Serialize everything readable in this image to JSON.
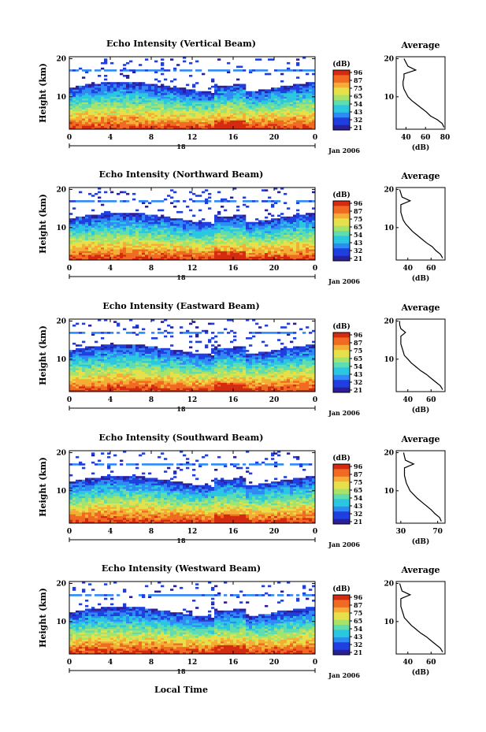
{
  "figure": {
    "local_time_label": "Local Time",
    "date_label": "Jan 2006",
    "day_label": "18",
    "y_axis_label": "Height (km)",
    "colorbar_unit": "(dB)",
    "colorbar_ticks": [
      "96",
      "87",
      "75",
      "65",
      "54",
      "43",
      "32",
      "21"
    ],
    "colors": {
      "colormap": [
        "#2a1f9a",
        "#1f3fe0",
        "#2f8af5",
        "#2bc7e0",
        "#5fdcb0",
        "#a6e36d",
        "#e6e04a",
        "#f5ae35",
        "#f06a22",
        "#d42a10"
      ],
      "line": "#000000"
    }
  },
  "chart_data": [
    {
      "type": "heatmap",
      "title": "Echo Intensity (Vertical Beam)",
      "xlabel": "",
      "ylabel": "Height (km)",
      "xticks": [
        "0",
        "4",
        "8",
        "12",
        "16",
        "20",
        "0"
      ],
      "yticks": [
        "20",
        "10"
      ],
      "xlim": [
        0,
        24
      ],
      "ylim": [
        1.5,
        20.5
      ],
      "colorbar": {
        "label": "(dB)",
        "range": [
          21,
          96
        ],
        "ticks": [
          96,
          87,
          75,
          65,
          54,
          43,
          32,
          21
        ]
      },
      "profile": {
        "title": "Average",
        "xlabel": "(dB)",
        "xticks": [
          "40",
          "60",
          "80"
        ],
        "yticks": [
          "20",
          "10"
        ],
        "xlim": [
          30,
          80
        ],
        "height": [
          2,
          3,
          4,
          5,
          6,
          7,
          8,
          9,
          10,
          11,
          12,
          13,
          14,
          15,
          16,
          17,
          18,
          19,
          20
        ],
        "values": [
          79,
          77,
          72,
          65,
          61,
          56,
          51,
          46,
          42,
          40,
          38,
          37,
          37,
          38,
          38,
          50,
          42,
          40,
          38
        ]
      }
    },
    {
      "type": "heatmap",
      "title": "Echo Intensity (Northward Beam)",
      "xlabel": "",
      "ylabel": "Height (km)",
      "xticks": [
        "0",
        "4",
        "8",
        "12",
        "16",
        "20",
        "0"
      ],
      "yticks": [
        "20",
        "10"
      ],
      "xlim": [
        0,
        24
      ],
      "ylim": [
        1.5,
        20.5
      ],
      "colorbar": {
        "label": "(dB)",
        "range": [
          21,
          96
        ],
        "ticks": [
          96,
          87,
          75,
          65,
          54,
          43,
          32,
          21
        ]
      },
      "profile": {
        "title": "Average",
        "xlabel": "(dB)",
        "xticks": [
          "40",
          "60"
        ],
        "yticks": [
          "20",
          "10"
        ],
        "xlim": [
          30,
          72
        ],
        "height": [
          2,
          3,
          4,
          5,
          6,
          7,
          8,
          9,
          10,
          11,
          12,
          13,
          14,
          15,
          16,
          17,
          18,
          19,
          20
        ],
        "values": [
          70,
          68,
          64,
          61,
          56,
          52,
          48,
          44,
          41,
          38,
          36,
          35,
          34,
          34,
          34,
          42,
          35,
          34,
          33
        ]
      }
    },
    {
      "type": "heatmap",
      "title": "Echo Intensity (Eastward Beam)",
      "xlabel": "",
      "ylabel": "Height (km)",
      "xticks": [
        "0",
        "4",
        "8",
        "12",
        "16",
        "20",
        "0"
      ],
      "yticks": [
        "20",
        "10"
      ],
      "xlim": [
        0,
        24
      ],
      "ylim": [
        1.5,
        20.5
      ],
      "colorbar": {
        "label": "(dB)",
        "range": [
          21,
          96
        ],
        "ticks": [
          96,
          87,
          75,
          65,
          54,
          43,
          32,
          21
        ]
      },
      "profile": {
        "title": "Average",
        "xlabel": "(dB)",
        "xticks": [
          "40",
          "60"
        ],
        "yticks": [
          "20",
          "10"
        ],
        "xlim": [
          30,
          72
        ],
        "height": [
          2,
          3,
          4,
          5,
          6,
          7,
          8,
          9,
          10,
          11,
          12,
          13,
          14,
          15,
          16,
          17,
          18,
          19,
          20
        ],
        "values": [
          70,
          68,
          64,
          60,
          56,
          51,
          47,
          43,
          40,
          37,
          36,
          35,
          34,
          34,
          34,
          38,
          34,
          33,
          33
        ]
      }
    },
    {
      "type": "heatmap",
      "title": "Echo Intensity (Southward Beam)",
      "xlabel": "",
      "ylabel": "Height (km)",
      "xticks": [
        "0",
        "4",
        "8",
        "12",
        "16",
        "20",
        "0"
      ],
      "yticks": [
        "20",
        "10"
      ],
      "xlim": [
        0,
        24
      ],
      "ylim": [
        1.5,
        20.5
      ],
      "colorbar": {
        "label": "(dB)",
        "range": [
          21,
          96
        ],
        "ticks": [
          96,
          87,
          75,
          65,
          54,
          43,
          32,
          21
        ]
      },
      "profile": {
        "title": "Average",
        "xlabel": "(dB)",
        "xticks": [
          "30",
          "70"
        ],
        "yticks": [
          "20",
          "10"
        ],
        "xlim": [
          25,
          78
        ],
        "height": [
          2,
          3,
          4,
          5,
          6,
          7,
          8,
          9,
          10,
          11,
          12,
          13,
          14,
          15,
          16,
          17,
          18,
          19,
          20
        ],
        "values": [
          74,
          72,
          67,
          63,
          58,
          53,
          48,
          44,
          40,
          38,
          36,
          35,
          34,
          34,
          34,
          44,
          35,
          34,
          33
        ]
      }
    },
    {
      "type": "heatmap",
      "title": "Echo Intensity (Westward Beam)",
      "xlabel": "Local Time",
      "ylabel": "Height (km)",
      "xticks": [
        "0",
        "4",
        "8",
        "12",
        "16",
        "20",
        "0"
      ],
      "yticks": [
        "20",
        "10"
      ],
      "xlim": [
        0,
        24
      ],
      "ylim": [
        1.5,
        20.5
      ],
      "colorbar": {
        "label": "(dB)",
        "range": [
          21,
          96
        ],
        "ticks": [
          96,
          87,
          75,
          65,
          54,
          43,
          32,
          21
        ]
      },
      "profile": {
        "title": "Average",
        "xlabel": "(dB)",
        "xticks": [
          "40",
          "60"
        ],
        "yticks": [
          "20",
          "10"
        ],
        "xlim": [
          30,
          72
        ],
        "height": [
          2,
          3,
          4,
          5,
          6,
          7,
          8,
          9,
          10,
          11,
          12,
          13,
          14,
          15,
          16,
          17,
          18,
          19,
          20
        ],
        "values": [
          70,
          68,
          64,
          60,
          56,
          51,
          47,
          43,
          40,
          37,
          36,
          35,
          34,
          34,
          34,
          42,
          35,
          34,
          33
        ]
      }
    }
  ]
}
